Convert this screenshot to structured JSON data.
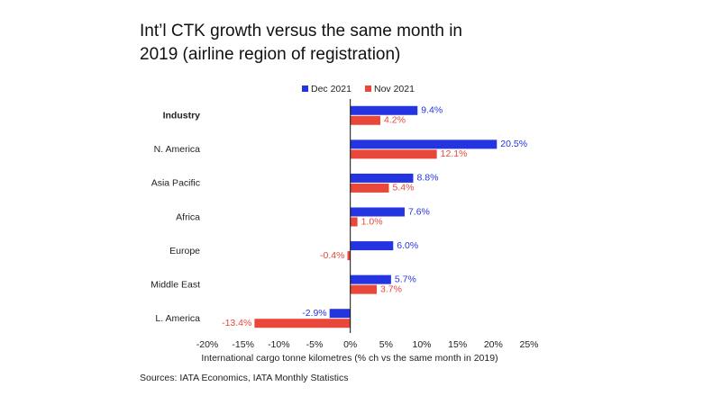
{
  "chart_data": {
    "type": "barh",
    "title": "Int’l CTK growth versus the same month in 2019 (airline region of registration)",
    "categories": [
      "Industry",
      "N. America",
      "Asia Pacific",
      "Africa",
      "Europe",
      "Middle East",
      "L. America"
    ],
    "series": [
      {
        "name": "Dec 2021",
        "color": "#2434e0",
        "values": [
          9.4,
          20.5,
          8.8,
          7.6,
          6.0,
          5.7,
          -2.9
        ],
        "value_labels": [
          "9.4%",
          "20.5%",
          "8.8%",
          "7.6%",
          "6.0%",
          "5.7%",
          "-2.9%"
        ]
      },
      {
        "name": "Nov 2021",
        "color": "#e8473a",
        "values": [
          4.2,
          12.1,
          5.4,
          1.0,
          -0.4,
          3.7,
          -13.4
        ],
        "value_labels": [
          "4.2%",
          "12.1%",
          "5.4%",
          "1.0%",
          "-0.4%",
          "3.7%",
          "-13.4%"
        ]
      }
    ],
    "xlim": [
      -20,
      25
    ],
    "xticks": [
      {
        "value": -20,
        "label": "-20%"
      },
      {
        "value": -15,
        "label": "-15%"
      },
      {
        "value": -10,
        "label": "-10%"
      },
      {
        "value": -5,
        "label": "-5%"
      },
      {
        "value": 0,
        "label": "0%"
      },
      {
        "value": 5,
        "label": "5%"
      },
      {
        "value": 10,
        "label": "10%"
      },
      {
        "value": 15,
        "label": "15%"
      },
      {
        "value": 20,
        "label": "20%"
      },
      {
        "value": 25,
        "label": "25%"
      }
    ],
    "xlabel": "International cargo tonne kilometres (% ch vs the same month in 2019)",
    "source": "Sources: IATA Economics, IATA Monthly Statistics",
    "legend": "top"
  }
}
